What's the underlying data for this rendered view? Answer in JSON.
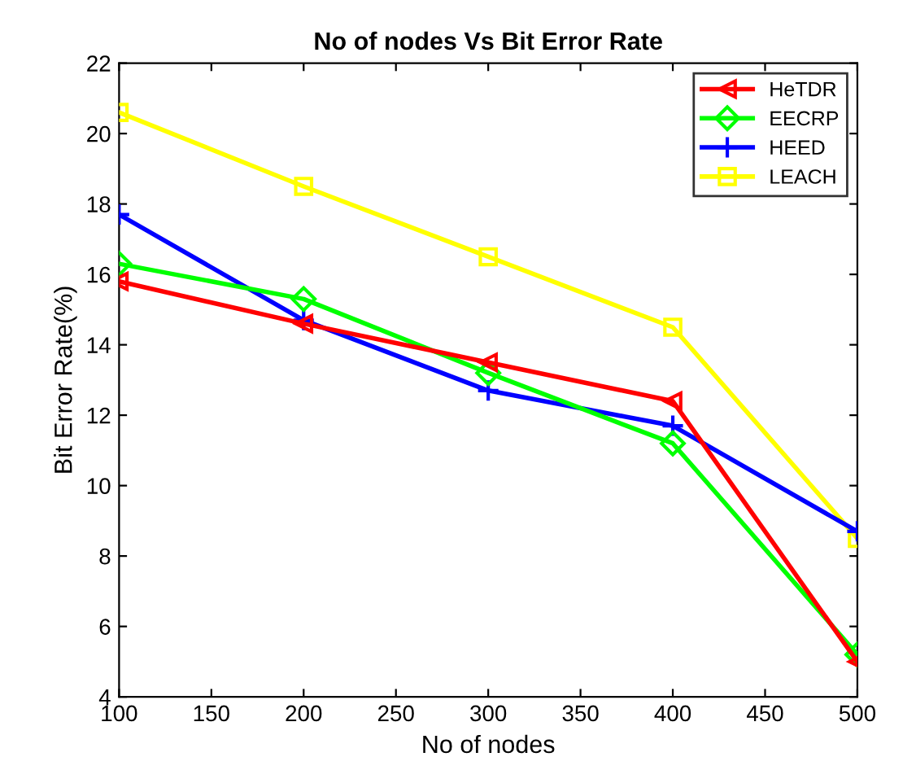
{
  "chart_data": {
    "type": "line",
    "title": "No of nodes Vs Bit Error Rate",
    "xlabel": "No of nodes",
    "ylabel": "Bit Error Rate(%)",
    "x": [
      100,
      200,
      300,
      400,
      500
    ],
    "series": [
      {
        "name": "HeTDR",
        "color": "#ff0000",
        "marker": "triangle",
        "values": [
          15.8,
          14.6,
          13.5,
          12.4,
          5.0
        ]
      },
      {
        "name": "EECRP",
        "color": "#00ff00",
        "marker": "diamond",
        "values": [
          16.3,
          15.3,
          13.2,
          11.2,
          5.2
        ]
      },
      {
        "name": "HEED",
        "color": "#0000ff",
        "marker": "cross",
        "values": [
          17.7,
          14.7,
          12.7,
          11.7,
          8.7
        ]
      },
      {
        "name": "LEACH",
        "color": "#ffff00",
        "marker": "square",
        "values": [
          20.6,
          18.5,
          16.5,
          14.5,
          8.5
        ]
      }
    ],
    "xlim": [
      100,
      500
    ],
    "xticks": [
      100,
      150,
      200,
      250,
      300,
      350,
      400,
      450,
      500
    ],
    "ylim": [
      4,
      22
    ],
    "yticks": [
      4,
      6,
      8,
      10,
      12,
      14,
      16,
      18,
      20,
      22
    ],
    "grid": false,
    "legend": "top right",
    "line_style": "solid"
  }
}
